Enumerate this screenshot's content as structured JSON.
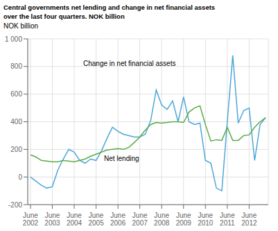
{
  "chart_data": {
    "type": "line",
    "title": "Central governments net lending and change in net financial assets",
    "subtitle": "over the last four quarters. NOK billion",
    "ylabel": "NOK billion",
    "categories": [
      "June\n2002",
      null,
      null,
      null,
      "June\n2003",
      null,
      null,
      null,
      "June\n2004",
      null,
      null,
      null,
      "June\n2005",
      null,
      null,
      null,
      "June\n2006",
      null,
      null,
      null,
      "June\n2007",
      null,
      null,
      null,
      "June\n2008",
      null,
      null,
      null,
      "June\n2009",
      null,
      null,
      null,
      "June\n2010",
      null,
      null,
      null,
      "June\n2011",
      null,
      null,
      null,
      "June\n2012",
      null,
      null,
      null
    ],
    "series": [
      {
        "color": "#4da6d9",
        "values": [
          0,
          -30,
          -60,
          -80,
          -70,
          50,
          130,
          200,
          180,
          120,
          100,
          130,
          120,
          190,
          280,
          360,
          330,
          310,
          300,
          290,
          290,
          310,
          410,
          630,
          520,
          490,
          550,
          400,
          580,
          400,
          380,
          390,
          120,
          100,
          -80,
          -100,
          400,
          880,
          390,
          480,
          500,
          120,
          380,
          430
        ]
      },
      {
        "color": "#5aab47",
        "values": [
          160,
          145,
          120,
          115,
          110,
          110,
          120,
          115,
          110,
          120,
          130,
          150,
          165,
          180,
          195,
          200,
          205,
          200,
          215,
          250,
          290,
          340,
          380,
          395,
          390,
          395,
          400,
          400,
          395,
          470,
          500,
          515,
          380,
          260,
          270,
          265,
          360,
          265,
          265,
          300,
          305,
          360,
          400,
          430
        ]
      }
    ],
    "annotations": [
      "Net lending",
      "Change in net financial assets"
    ],
    "ylim": [
      -200,
      1000
    ],
    "yticks": [
      -200,
      0,
      200,
      400,
      600,
      800,
      {
        "value": 1000,
        "label": "1 000"
      }
    ],
    "grid": true
  }
}
